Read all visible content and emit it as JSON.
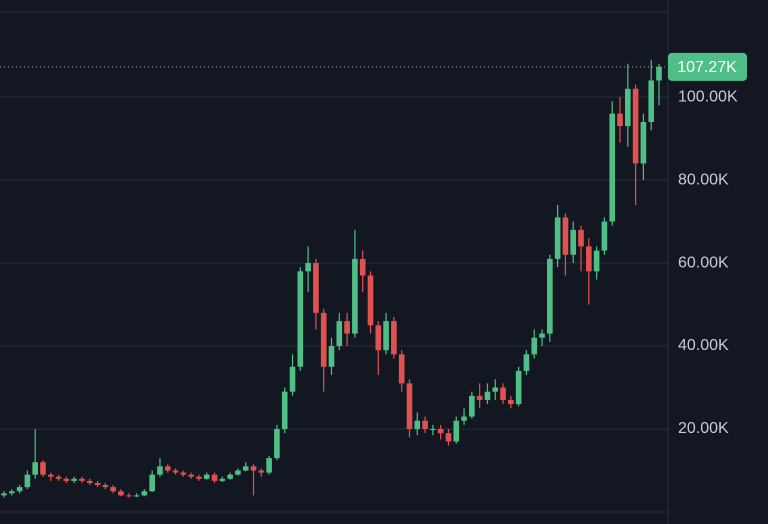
{
  "chart_data": {
    "type": "candlestick",
    "open": [
      4000,
      4500,
      5000,
      6000,
      9000,
      12000,
      9000,
      8500,
      8000,
      7500,
      8000,
      7500,
      7000,
      6500,
      6000,
      5000,
      4000,
      3800,
      4000,
      5000,
      9000,
      11000,
      10000,
      9500,
      9000,
      8500,
      8000,
      9000,
      7500,
      8000,
      9000,
      10000,
      11000,
      10000,
      9500,
      13000,
      20000,
      29000,
      35000,
      58000,
      60000,
      48000,
      35000,
      40000,
      46000,
      43000,
      61000,
      57000,
      45000,
      39000,
      46000,
      38000,
      31000,
      20000,
      22000,
      20000,
      20000,
      19000,
      17000,
      22000,
      23000,
      28000,
      27000,
      29000,
      30000,
      27000,
      26000,
      34000,
      38000,
      42000,
      43000,
      61000,
      71000,
      62000,
      68000,
      64000,
      58000,
      63000,
      70000,
      96000,
      93000,
      102000,
      84000,
      94000,
      104000
    ],
    "high": [
      5000,
      5500,
      6500,
      10000,
      20000,
      12500,
      9500,
      9000,
      8500,
      8500,
      8500,
      8000,
      7500,
      7000,
      6500,
      5500,
      4500,
      4500,
      5500,
      10000,
      13000,
      11500,
      10500,
      10000,
      9500,
      9000,
      9500,
      9500,
      8500,
      9500,
      10500,
      12000,
      11500,
      10500,
      13500,
      21000,
      30000,
      38000,
      59000,
      64000,
      61000,
      49000,
      42000,
      48000,
      48000,
      68000,
      63000,
      58000,
      46000,
      48000,
      47000,
      39000,
      32000,
      24000,
      23000,
      21000,
      21000,
      20000,
      23000,
      25000,
      29000,
      31000,
      31000,
      32000,
      31000,
      28000,
      35000,
      39000,
      44000,
      44000,
      62000,
      74000,
      72000,
      70000,
      69000,
      66000,
      64000,
      71000,
      99000,
      100000,
      108000,
      103000,
      96000,
      109000,
      108000
    ],
    "low": [
      3500,
      4000,
      4500,
      5500,
      8000,
      8500,
      7500,
      7500,
      7000,
      7000,
      7000,
      6500,
      6000,
      5500,
      4500,
      3800,
      3500,
      3600,
      3800,
      4800,
      8500,
      9500,
      9000,
      8500,
      8000,
      7500,
      7800,
      7000,
      7200,
      7800,
      8800,
      9800,
      4000,
      8500,
      9000,
      12500,
      19000,
      28000,
      34000,
      53000,
      44000,
      29000,
      33000,
      39000,
      40000,
      42000,
      53000,
      43000,
      33000,
      38000,
      37000,
      29000,
      18000,
      18500,
      19000,
      18500,
      17500,
      16000,
      16500,
      21000,
      22500,
      25000,
      26000,
      27000,
      26000,
      25000,
      25500,
      33000,
      37000,
      40000,
      41000,
      59000,
      57000,
      60000,
      58000,
      50000,
      56000,
      62000,
      69000,
      89000,
      88000,
      74000,
      80000,
      92000,
      98000
    ],
    "close": [
      4500,
      5000,
      6000,
      9000,
      12000,
      9000,
      8500,
      8000,
      7500,
      8000,
      7500,
      7000,
      6500,
      6000,
      5000,
      4000,
      3800,
      4000,
      5000,
      9000,
      11000,
      10000,
      9500,
      9000,
      8500,
      8000,
      9000,
      7500,
      8000,
      9000,
      10000,
      11000,
      10000,
      9500,
      13000,
      20000,
      29000,
      35000,
      58000,
      60000,
      48000,
      35000,
      40000,
      46000,
      43000,
      61000,
      57000,
      45000,
      39000,
      46000,
      38000,
      31000,
      20000,
      22000,
      20000,
      20000,
      19000,
      17000,
      22000,
      23000,
      28000,
      27000,
      29000,
      30000,
      27000,
      26000,
      34000,
      38000,
      42000,
      43000,
      61000,
      71000,
      62000,
      68000,
      64000,
      58000,
      63000,
      70000,
      96000,
      93000,
      102000,
      84000,
      94000,
      104000,
      107270
    ],
    "up_color": "#4fbf87",
    "down_color": "#e0524f",
    "last_price": {
      "value": 107270,
      "label": "107.27K"
    },
    "ylim": [
      0,
      120500
    ],
    "yticks": [
      {
        "value": 20000,
        "label": "20.00K"
      },
      {
        "value": 40000,
        "label": "40.00K"
      },
      {
        "value": 60000,
        "label": "60.00K"
      },
      {
        "value": 80000,
        "label": "80.00K"
      },
      {
        "value": 100000,
        "label": "100.00K"
      }
    ],
    "grid": true
  }
}
